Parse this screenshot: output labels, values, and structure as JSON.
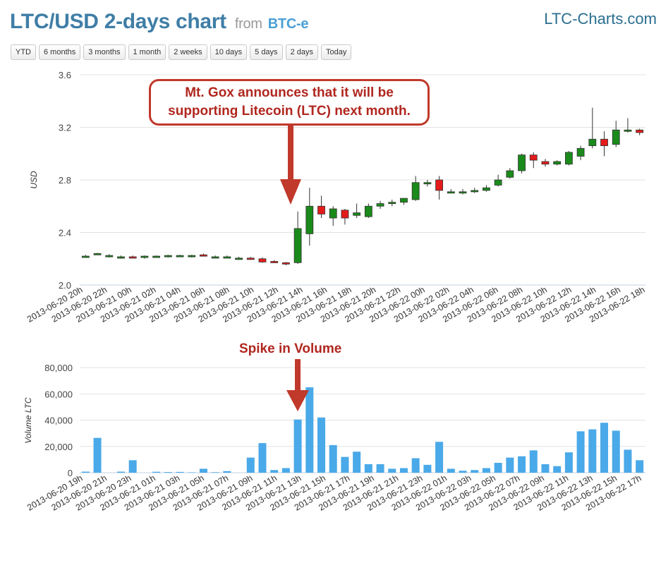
{
  "header": {
    "title": "LTC/USD 2-days chart",
    "from_label": "from",
    "source": "BTC-e",
    "brand": "LTC-Charts.com"
  },
  "range_buttons": [
    "YTD",
    "6 months",
    "3 months",
    "1 month",
    "2 weeks",
    "10 days",
    "5 days",
    "2 days",
    "Today"
  ],
  "annotations": {
    "callout_line1": "Mt. Gox announces that it will be",
    "callout_line2": "supporting Litecoin (LTC) next month.",
    "spike": "Spike in Volume"
  },
  "colors": {
    "up": "#1a8a1a",
    "down": "#e41b1b",
    "volume": "#4aa9e8",
    "annotation": "#c0392b",
    "title": "#3f7ea6"
  },
  "chart_data": [
    {
      "type": "candlestick",
      "ylabel": "USD",
      "ylim": [
        2.0,
        3.6
      ],
      "yticks": [
        "2.0",
        "2.4",
        "2.8",
        "3.2",
        "3.6"
      ],
      "xtick_labels": [
        "2013-06-20 20h",
        "2013-06-20 22h",
        "2013-06-21 00h",
        "2013-06-21 02h",
        "2013-06-21 04h",
        "2013-06-21 06h",
        "2013-06-21 08h",
        "2013-06-21 10h",
        "2013-06-21 12h",
        "2013-06-21 14h",
        "2013-06-21 16h",
        "2013-06-21 18h",
        "2013-06-21 20h",
        "2013-06-21 22h",
        "2013-06-22 00h",
        "2013-06-22 02h",
        "2013-06-22 04h",
        "2013-06-22 06h",
        "2013-06-22 08h",
        "2013-06-22 10h",
        "2013-06-22 12h",
        "2013-06-22 14h",
        "2013-06-22 16h",
        "2013-06-22 18h"
      ],
      "ohlc": [
        [
          2.22,
          2.23,
          2.21,
          2.22
        ],
        [
          2.235,
          2.245,
          2.23,
          2.24
        ],
        [
          2.22,
          2.235,
          2.21,
          2.225
        ],
        [
          2.21,
          2.225,
          2.2,
          2.215
        ],
        [
          2.215,
          2.225,
          2.205,
          2.21
        ],
        [
          2.21,
          2.225,
          2.2,
          2.22
        ],
        [
          2.215,
          2.225,
          2.21,
          2.22
        ],
        [
          2.22,
          2.23,
          2.21,
          2.225
        ],
        [
          2.22,
          2.23,
          2.215,
          2.225
        ],
        [
          2.22,
          2.23,
          2.21,
          2.225
        ],
        [
          2.23,
          2.24,
          2.22,
          2.22
        ],
        [
          2.215,
          2.225,
          2.205,
          2.215
        ],
        [
          2.215,
          2.225,
          2.205,
          2.215
        ],
        [
          2.205,
          2.215,
          2.195,
          2.205
        ],
        [
          2.205,
          2.215,
          2.195,
          2.2
        ],
        [
          2.2,
          2.21,
          2.17,
          2.175
        ],
        [
          2.18,
          2.19,
          2.17,
          2.175
        ],
        [
          2.17,
          2.175,
          2.15,
          2.16
        ],
        [
          2.17,
          2.56,
          2.16,
          2.43
        ],
        [
          2.39,
          2.74,
          2.3,
          2.6
        ],
        [
          2.6,
          2.68,
          2.51,
          2.54
        ],
        [
          2.51,
          2.6,
          2.45,
          2.58
        ],
        [
          2.57,
          2.58,
          2.46,
          2.51
        ],
        [
          2.53,
          2.62,
          2.51,
          2.55
        ],
        [
          2.52,
          2.62,
          2.51,
          2.6
        ],
        [
          2.6,
          2.64,
          2.58,
          2.62
        ],
        [
          2.62,
          2.65,
          2.6,
          2.63
        ],
        [
          2.63,
          2.66,
          2.61,
          2.66
        ],
        [
          2.65,
          2.83,
          2.64,
          2.78
        ],
        [
          2.77,
          2.8,
          2.75,
          2.78
        ],
        [
          2.8,
          2.83,
          2.65,
          2.72
        ],
        [
          2.71,
          2.73,
          2.7,
          2.71
        ],
        [
          2.71,
          2.73,
          2.69,
          2.71
        ],
        [
          2.71,
          2.74,
          2.7,
          2.72
        ],
        [
          2.72,
          2.76,
          2.71,
          2.74
        ],
        [
          2.76,
          2.84,
          2.75,
          2.8
        ],
        [
          2.82,
          2.89,
          2.81,
          2.87
        ],
        [
          2.87,
          3.0,
          2.85,
          2.99
        ],
        [
          2.99,
          3.01,
          2.89,
          2.95
        ],
        [
          2.94,
          2.96,
          2.9,
          2.92
        ],
        [
          2.92,
          2.95,
          2.91,
          2.94
        ],
        [
          2.92,
          3.02,
          2.91,
          3.01
        ],
        [
          2.98,
          3.06,
          2.95,
          3.04
        ],
        [
          3.06,
          3.35,
          3.04,
          3.11
        ],
        [
          3.11,
          3.17,
          2.98,
          3.06
        ],
        [
          3.07,
          3.25,
          3.05,
          3.18
        ],
        [
          3.17,
          3.27,
          3.16,
          3.18
        ],
        [
          3.18,
          3.19,
          3.14,
          3.16
        ]
      ]
    },
    {
      "type": "bar",
      "ylabel": "Volume LTC",
      "ylim": [
        0,
        80000
      ],
      "yticks": [
        "0",
        "20,000",
        "40,000",
        "60,000",
        "80,000"
      ],
      "xtick_labels": [
        "2013-06-20 19h",
        "2013-06-20 21h",
        "2013-06-20 23h",
        "2013-06-21 01h",
        "2013-06-21 03h",
        "2013-06-21 05h",
        "2013-06-21 07h",
        "2013-06-21 09h",
        "2013-06-21 11h",
        "2013-06-21 13h",
        "2013-06-21 15h",
        "2013-06-21 17h",
        "2013-06-21 19h",
        "2013-06-21 21h",
        "2013-06-21 23h",
        "2013-06-22 01h",
        "2013-06-22 03h",
        "2013-06-22 05h",
        "2013-06-22 07h",
        "2013-06-22 09h",
        "2013-06-22 11h",
        "2013-06-22 13h",
        "2013-06-22 15h",
        "2013-06-22 17h"
      ],
      "values": [
        800,
        26500,
        0,
        800,
        9500,
        0,
        700,
        500,
        600,
        300,
        3000,
        400,
        1200,
        0,
        11500,
        22500,
        2000,
        3500,
        40500,
        65000,
        42000,
        21000,
        12000,
        16000,
        6500,
        6500,
        3000,
        3500,
        11000,
        6000,
        23500,
        3000,
        1500,
        2000,
        3500,
        7500,
        11500,
        12500,
        17000,
        6500,
        5000,
        15500,
        31500,
        33000,
        38000,
        32000,
        17500,
        9500
      ]
    }
  ]
}
